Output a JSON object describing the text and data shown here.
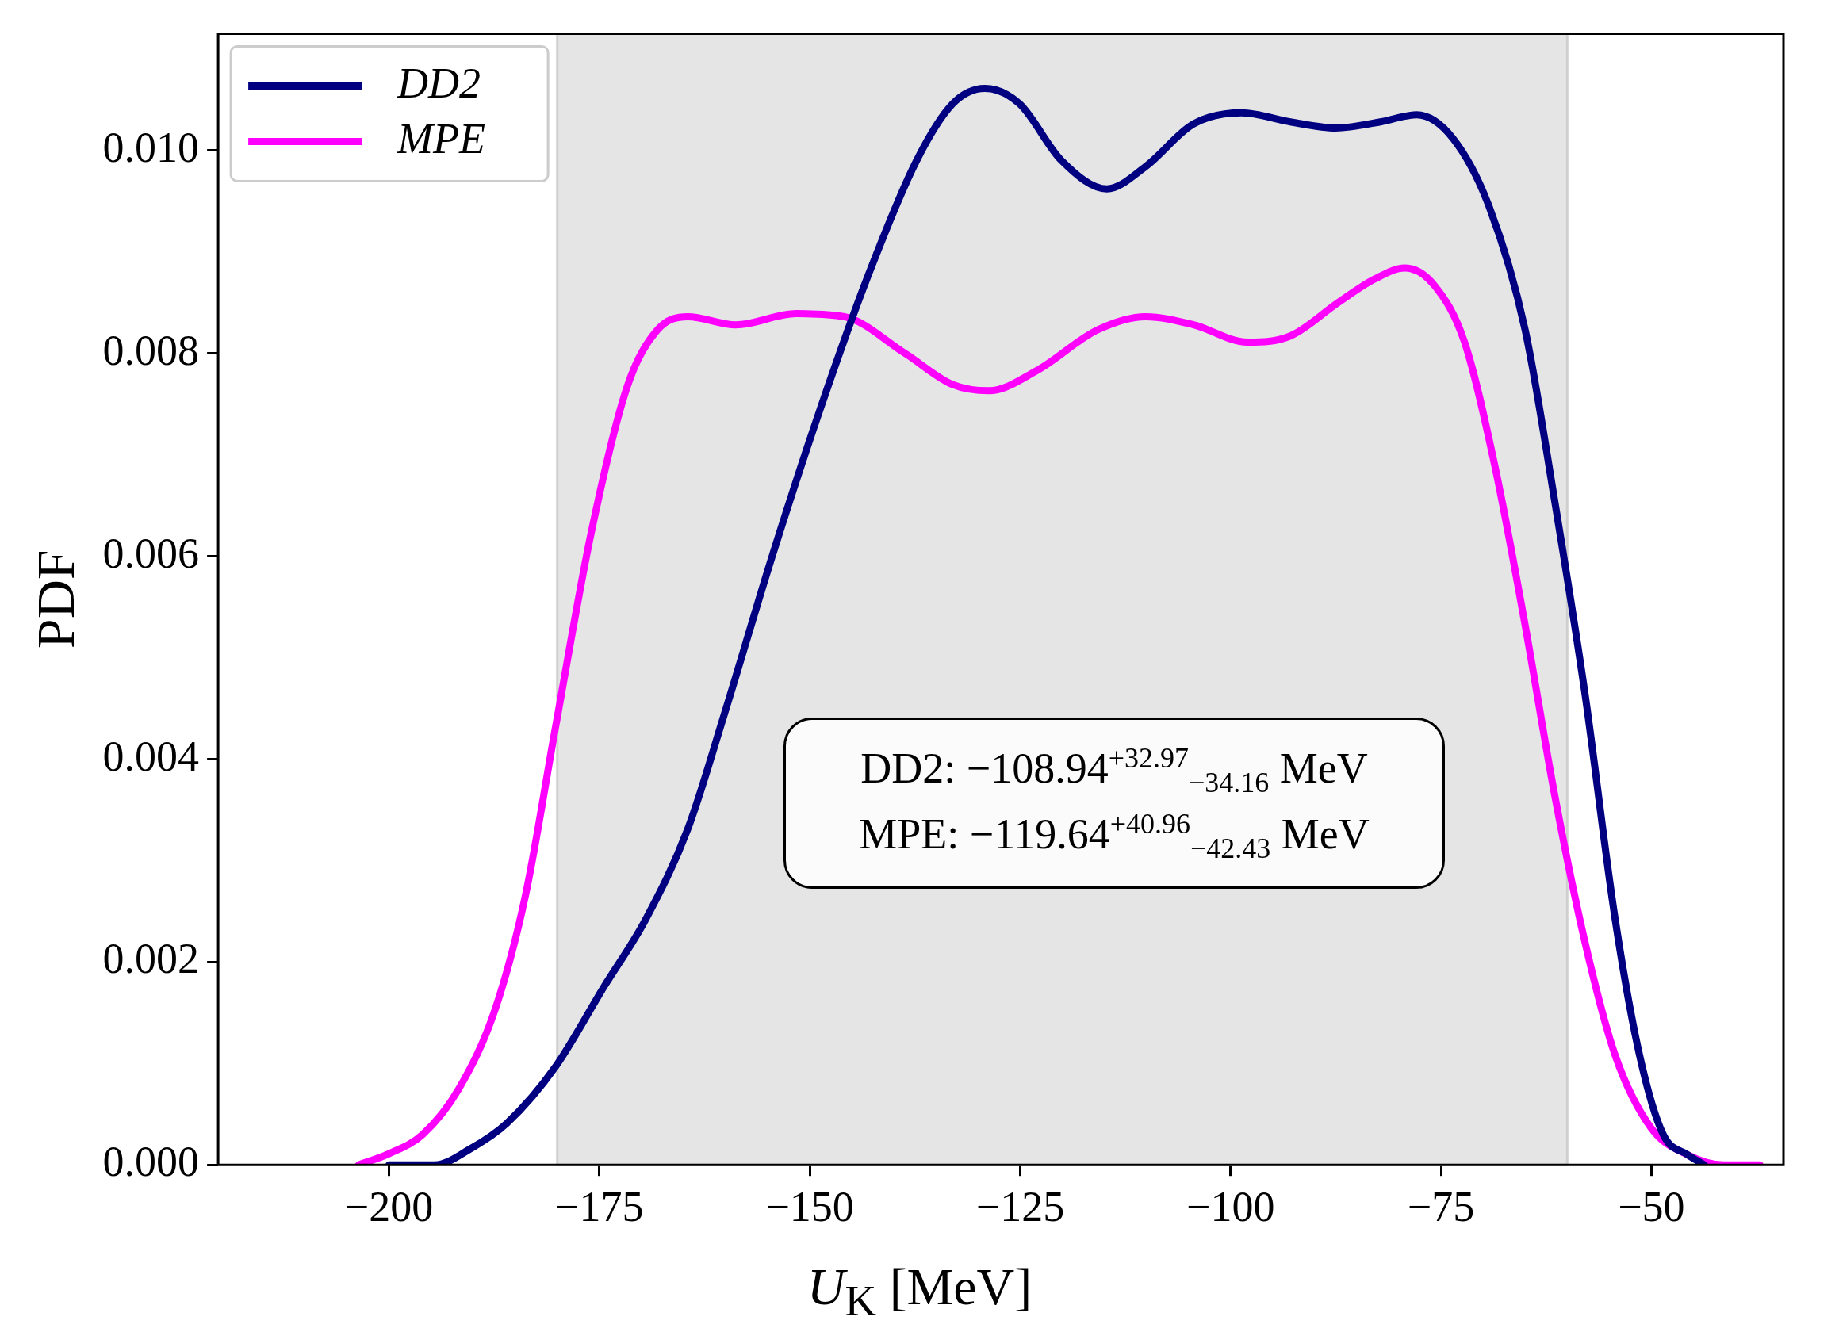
{
  "chart_data": {
    "type": "line",
    "xlabel": "U$_{K}$ [MeV]",
    "ylabel": "PDF",
    "xlim": [
      -220.3,
      -34.3
    ],
    "ylim": [
      0,
      0.01115
    ],
    "xticks": [
      {
        "value": -200,
        "label": "−200"
      },
      {
        "value": -175,
        "label": "−175"
      },
      {
        "value": -150,
        "label": "−150"
      },
      {
        "value": -125,
        "label": "−125"
      },
      {
        "value": -100,
        "label": "−100"
      },
      {
        "value": -75,
        "label": "−75"
      },
      {
        "value": -50,
        "label": "−50"
      }
    ],
    "yticks": [
      {
        "value": 0,
        "label": "0.000"
      },
      {
        "value": 0.002,
        "label": "0.002"
      },
      {
        "value": 0.004,
        "label": "0.004"
      },
      {
        "value": 0.006,
        "label": "0.006"
      },
      {
        "value": 0.008,
        "label": "0.008"
      },
      {
        "value": 0.01,
        "label": "0.010"
      }
    ],
    "grid": false,
    "legend": "top left",
    "marker": "none",
    "line_style": "solid",
    "bands": [
      {
        "axis": "x",
        "from": -180,
        "to": -60,
        "color": "#e5e5e5"
      }
    ],
    "annotations": [
      "DD2: −108.94$^{+32.97}$$_{−34.16}$ MeV",
      "MPE: −119.64$^{+40.96}$$_{−42.43}$ MeV"
    ],
    "series": [
      {
        "name": "DD2",
        "color": "#000080",
        "x": [
          -200,
          -194.6,
          -190.3,
          -186.0,
          -180.2,
          -174.5,
          -169.5,
          -164.5,
          -160.2,
          -154.5,
          -148.8,
          -143.0,
          -137.3,
          -133.0,
          -129.2,
          -125.1,
          -120.1,
          -114.7,
          -110.1,
          -104.4,
          -98.7,
          -92.9,
          -87.5,
          -82.2,
          -77.9,
          -73.6,
          -69.3,
          -65.0,
          -61.5,
          -57.9,
          -54.3,
          -51.4,
          -48.6,
          -45.7,
          -43.7
        ],
        "values": [
          0,
          0,
          0.00016,
          0.00041,
          0.00097,
          0.00175,
          0.00242,
          0.00331,
          0.00443,
          0.00599,
          0.00744,
          0.00878,
          0.0099,
          0.01046,
          0.01061,
          0.01046,
          0.0099,
          0.00962,
          0.00984,
          0.01026,
          0.01037,
          0.01028,
          0.01022,
          0.01028,
          0.01035,
          0.01012,
          0.00945,
          0.00823,
          0.00655,
          0.00465,
          0.00242,
          0.00108,
          0.0003,
          0.0001,
          0
        ]
      },
      {
        "name": "MPE",
        "color": "#ff00ff",
        "x": [
          -203.6,
          -200,
          -196,
          -191.7,
          -187.4,
          -183.8,
          -180.2,
          -176.0,
          -171.7,
          -168.1,
          -164.5,
          -158.8,
          -151.6,
          -145.9,
          -138.7,
          -133.0,
          -128.7,
          -123.0,
          -115.8,
          -110.1,
          -104.4,
          -98.0,
          -92.9,
          -87.2,
          -82.9,
          -79.3,
          -75.8,
          -72.2,
          -68.6,
          -65.0,
          -61.5,
          -57.9,
          -54.3,
          -50.0,
          -45.7,
          -41.4,
          -37.1
        ],
        "values": [
          0,
          0.00011,
          0.0003,
          0.00075,
          0.00153,
          0.00265,
          0.00432,
          0.00622,
          0.00767,
          0.00823,
          0.00836,
          0.00828,
          0.00839,
          0.00836,
          0.008,
          0.00769,
          0.00763,
          0.00783,
          0.00823,
          0.00836,
          0.00828,
          0.00811,
          0.00817,
          0.0085,
          0.00873,
          0.00884,
          0.00867,
          0.00811,
          0.00689,
          0.00532,
          0.00365,
          0.0022,
          0.00108,
          0.00036,
          0.0001,
          0,
          0
        ]
      }
    ]
  }
}
